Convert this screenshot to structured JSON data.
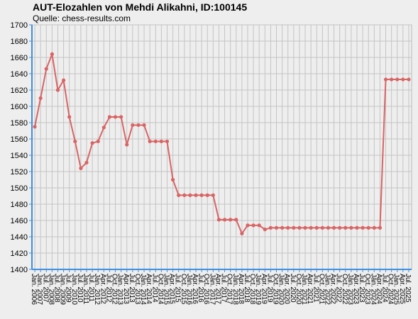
{
  "chart_data": {
    "type": "line",
    "title": "AUT-Elozahlen von Mehdi Alikahni, ID:100145",
    "subtitle": "Quelle: chess-results.com",
    "categories": [
      "Jan. 2006",
      "Jan. 2007",
      "Jul. 2007",
      "Jan. 2008",
      "Jul. 2008",
      "Jan. 2009",
      "Jul. 2009",
      "Jan. 2010",
      "Jul. 2010",
      "Jan. 2011",
      "Jul. 2011",
      "Jan. 2012",
      "Apr. 2012",
      "Jul. 2012",
      "Oct. 2012",
      "Jan. 2013",
      "Apr. 2013",
      "Jul. 2013",
      "Oct. 2013",
      "Jan. 2014",
      "Apr. 2014",
      "Jul. 2014",
      "Oct. 2014",
      "Jan. 2015",
      "Apr. 2015",
      "Jul. 2015",
      "Oct. 2015",
      "Jan. 2016",
      "Apr. 2016",
      "Jul. 2016",
      "Oct. 2016",
      "Jan. 2017",
      "Apr. 2017",
      "Jul. 2017",
      "Oct. 2017",
      "Jan. 2018",
      "Apr. 2018",
      "Jul. 2018",
      "Oct. 2018",
      "Jan. 2019",
      "Apr. 2019",
      "Jul. 2019",
      "Oct. 2019",
      "Jan. 2020",
      "Apr. 2020",
      "Jul. 2020",
      "Oct. 2020",
      "Jan. 2021",
      "Apr. 2021",
      "Jul. 2021",
      "Oct. 2021",
      "Jan. 2022",
      "Apr. 2022",
      "Jul. 2022",
      "Oct. 2022",
      "Jan. 2023",
      "Apr. 2023",
      "Jul. 2023",
      "Oct. 2023",
      "Jan. 2024",
      "Apr. 2024",
      "Jul. 2024",
      "Oct. 2024",
      "Jan. 2025",
      "Apr. 2025",
      "Jul. 2025"
    ],
    "series": [
      {
        "name": "Elo",
        "color": "#d96464",
        "values": [
          1575,
          1610,
          1646,
          1664,
          1620,
          1632,
          1587,
          1557,
          1524,
          1531,
          1555,
          1557,
          1574,
          1587,
          1587,
          1587,
          1553,
          1577,
          1577,
          1577,
          1557,
          1557,
          1557,
          1557,
          1510,
          1491,
          1491,
          1491,
          1491,
          1491,
          1491,
          1491,
          1461,
          1461,
          1461,
          1461,
          1444,
          1454,
          1454,
          1454,
          1449,
          1451,
          1451,
          1451,
          1451,
          1451,
          1451,
          1451,
          1451,
          1451,
          1451,
          1451,
          1451,
          1451,
          1451,
          1451,
          1451,
          1451,
          1451,
          1451,
          1451,
          1633,
          1633,
          1633,
          1633,
          1633
        ]
      }
    ],
    "ylim": [
      1400,
      1700
    ],
    "yticks": [
      1400,
      1420,
      1440,
      1460,
      1480,
      1500,
      1520,
      1540,
      1560,
      1580,
      1600,
      1620,
      1640,
      1660,
      1680,
      1700
    ],
    "grid": true
  }
}
